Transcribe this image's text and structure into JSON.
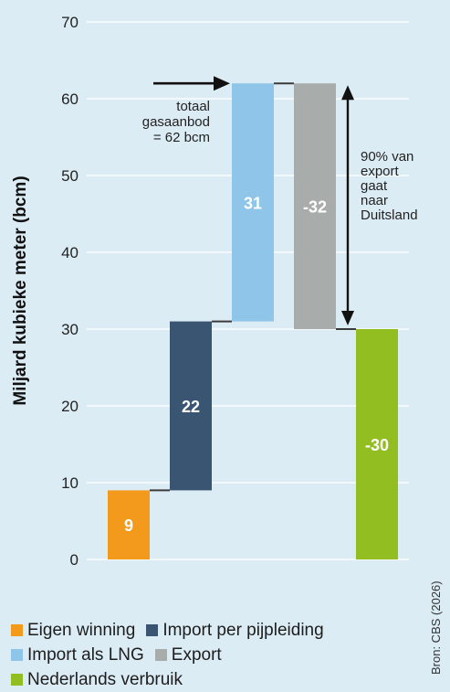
{
  "chart_data": {
    "type": "bar",
    "subtype": "waterfall",
    "ylabel": "Miljard kubieke meter (bcm)",
    "ylim": [
      0,
      70
    ],
    "yticks": [
      0,
      10,
      20,
      30,
      40,
      50,
      60,
      70
    ],
    "grid": true,
    "steps": [
      {
        "name": "Eigen winning",
        "value": 9,
        "label": "9",
        "color": "#f39a1d"
      },
      {
        "name": "Import per pijpleiding",
        "value": 22,
        "label": "22",
        "color": "#3a5571"
      },
      {
        "name": "Import als LNG",
        "value": 31,
        "label": "31",
        "color": "#8fc5e8"
      },
      {
        "name": "Export",
        "value": -32,
        "label": "-32",
        "color": "#a8adab"
      },
      {
        "name": "Nederlands verbruik",
        "value": -30,
        "label": "-30",
        "color": "#93be22"
      }
    ],
    "annotations": {
      "supply": [
        "totaal",
        "gasaanbod",
        "= 62 bcm"
      ],
      "export_note": [
        "90% van",
        "export",
        "gaat",
        "naar",
        "Duitsland"
      ]
    }
  },
  "legend": {
    "rows": [
      [
        {
          "label": "Eigen winning",
          "color": "#f39a1d"
        },
        {
          "label": "Import per pijpleiding",
          "color": "#3a5571"
        }
      ],
      [
        {
          "label": "Import als LNG",
          "color": "#8fc5e8"
        },
        {
          "label": "Export",
          "color": "#a8adab"
        }
      ],
      [
        {
          "label": "Nederlands verbruik",
          "color": "#93be22"
        }
      ]
    ]
  },
  "source": "Bron: CBS (2026)"
}
